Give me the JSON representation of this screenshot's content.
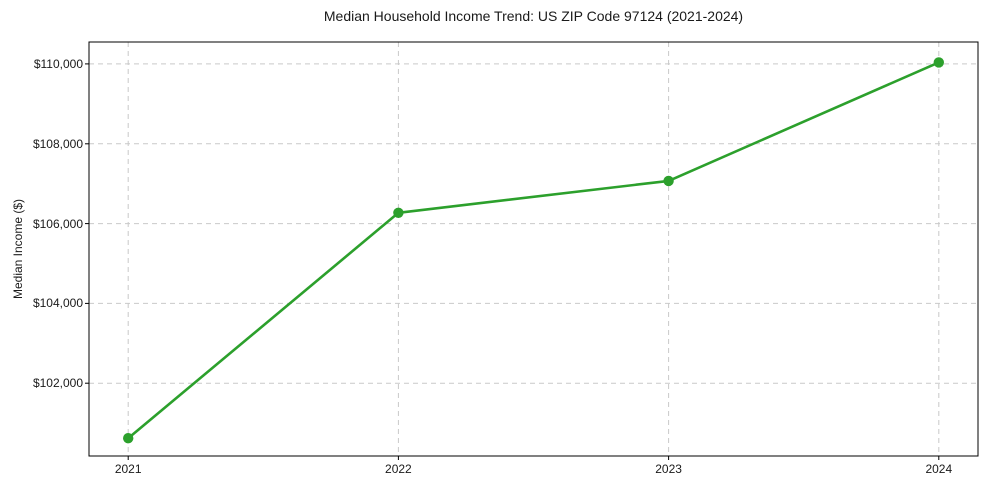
{
  "chart_data": {
    "type": "line",
    "title": "Median Household Income Trend: US ZIP Code 97124 (2021-2024)",
    "xlabel": "",
    "ylabel": "Median Income ($)",
    "x": [
      2021,
      2022,
      2023,
      2024
    ],
    "series": [
      {
        "color": "#2ca02c",
        "marker": "circle",
        "values": [
          100620,
          106270,
          107070,
          110040
        ]
      }
    ],
    "x_ticks": [
      2021,
      2022,
      2023,
      2024
    ],
    "x_tick_labels": [
      "2021",
      "2022",
      "2023",
      "2024"
    ],
    "y_ticks": [
      102000,
      104000,
      106000,
      108000,
      110000
    ],
    "y_tick_labels": [
      "$102,000",
      "$104,000",
      "$106,000",
      "$108,000",
      "$110,000"
    ],
    "xlim": [
      2020.855,
      2024.145
    ],
    "ylim": [
      100175,
      110550
    ],
    "grid": true,
    "grid_line_style": "dashed",
    "grid_color": "#c9c9c9",
    "spine_color": "#000000",
    "text_color": "#1a1a1a",
    "legend": "none",
    "background": "#ffffff"
  }
}
